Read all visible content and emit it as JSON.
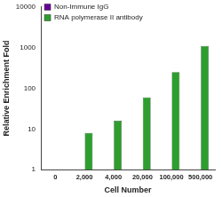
{
  "chart_data": {
    "type": "bar",
    "categories": [
      "0",
      "2,000",
      "4,000",
      "20,000",
      "100,000",
      "500,000"
    ],
    "series": [
      {
        "name": "Non-Immune IgG",
        "color": "#660099",
        "values": [
          1,
          1,
          1,
          1,
          1,
          1
        ]
      },
      {
        "name": "RNA polymerase II antibody",
        "color": "#2e9e2e",
        "values": [
          1,
          8,
          16,
          60,
          250,
          1100
        ]
      }
    ],
    "x_label": "Cell Number",
    "y_label": "Relative Enrichment Fold",
    "ylim": [
      1,
      10000
    ],
    "yticks": [
      1,
      10,
      100,
      1000,
      10000
    ],
    "log": "y",
    "grid": false,
    "legend": "upper left"
  }
}
